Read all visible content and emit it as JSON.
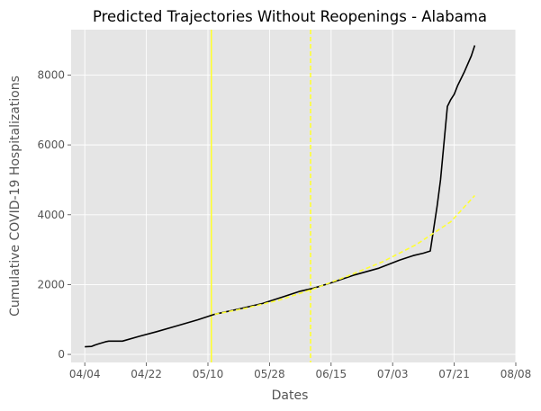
{
  "chart_data": {
    "type": "line",
    "title": "Predicted Trajectories Without Reopenings - Alabama",
    "xlabel": "Dates",
    "ylabel": "Cumulative COVID-19 Hospitalizations",
    "x_axis": {
      "kind": "date",
      "range": [
        "2020-03-31",
        "2020-08-08"
      ],
      "ticks": [
        {
          "date": "2020-04-04",
          "label": "04/04"
        },
        {
          "date": "2020-04-22",
          "label": "04/22"
        },
        {
          "date": "2020-05-10",
          "label": "05/10"
        },
        {
          "date": "2020-05-28",
          "label": "05/28"
        },
        {
          "date": "2020-06-15",
          "label": "06/15"
        },
        {
          "date": "2020-07-03",
          "label": "07/03"
        },
        {
          "date": "2020-07-21",
          "label": "07/21"
        },
        {
          "date": "2020-08-08",
          "label": "08/08"
        }
      ]
    },
    "y_axis": {
      "range": [
        -230,
        9300
      ],
      "ticks": [
        0,
        2000,
        4000,
        6000,
        8000
      ]
    },
    "grid": true,
    "series": [
      {
        "style": "solid",
        "color": "#000000",
        "points": [
          [
            "2020-04-04",
            220
          ],
          [
            "2020-04-06",
            230
          ],
          [
            "2020-04-07",
            270
          ],
          [
            "2020-04-08",
            300
          ],
          [
            "2020-04-10",
            360
          ],
          [
            "2020-04-11",
            380
          ],
          [
            "2020-04-13",
            380
          ],
          [
            "2020-04-15",
            380
          ],
          [
            "2020-04-20",
            520
          ],
          [
            "2020-04-25",
            650
          ],
          [
            "2020-05-01",
            820
          ],
          [
            "2020-05-07",
            990
          ],
          [
            "2020-05-12",
            1150
          ],
          [
            "2020-05-19",
            1300
          ],
          [
            "2020-05-26",
            1460
          ],
          [
            "2020-06-01",
            1650
          ],
          [
            "2020-06-06",
            1810
          ],
          [
            "2020-06-10",
            1900
          ],
          [
            "2020-06-15",
            2050
          ],
          [
            "2020-06-22",
            2280
          ],
          [
            "2020-06-29",
            2470
          ],
          [
            "2020-07-05",
            2700
          ],
          [
            "2020-07-09",
            2830
          ],
          [
            "2020-07-12",
            2900
          ],
          [
            "2020-07-14",
            2960
          ],
          [
            "2020-07-15",
            3600
          ],
          [
            "2020-07-16",
            4250
          ],
          [
            "2020-07-17",
            5000
          ],
          [
            "2020-07-19",
            7100
          ],
          [
            "2020-07-20",
            7300
          ],
          [
            "2020-07-21",
            7450
          ],
          [
            "2020-07-22",
            7700
          ],
          [
            "2020-07-24",
            8100
          ],
          [
            "2020-07-26",
            8550
          ],
          [
            "2020-07-27",
            8850
          ]
        ]
      },
      {
        "style": "dashed",
        "color": "#ffff33",
        "points": [
          [
            "2020-05-12",
            1150
          ],
          [
            "2020-05-21",
            1320
          ],
          [
            "2020-05-31",
            1560
          ],
          [
            "2020-06-10",
            1880
          ],
          [
            "2020-06-20",
            2250
          ],
          [
            "2020-06-30",
            2650
          ],
          [
            "2020-07-10",
            3150
          ],
          [
            "2020-07-20",
            3800
          ],
          [
            "2020-07-27",
            4550
          ]
        ]
      }
    ],
    "vertical_lines": [
      {
        "date": "2020-05-11",
        "style": "solid",
        "color": "#ffff33"
      },
      {
        "date": "2020-06-09",
        "style": "dashed",
        "color": "#ffff33"
      }
    ],
    "background": "#e5e5e5"
  }
}
